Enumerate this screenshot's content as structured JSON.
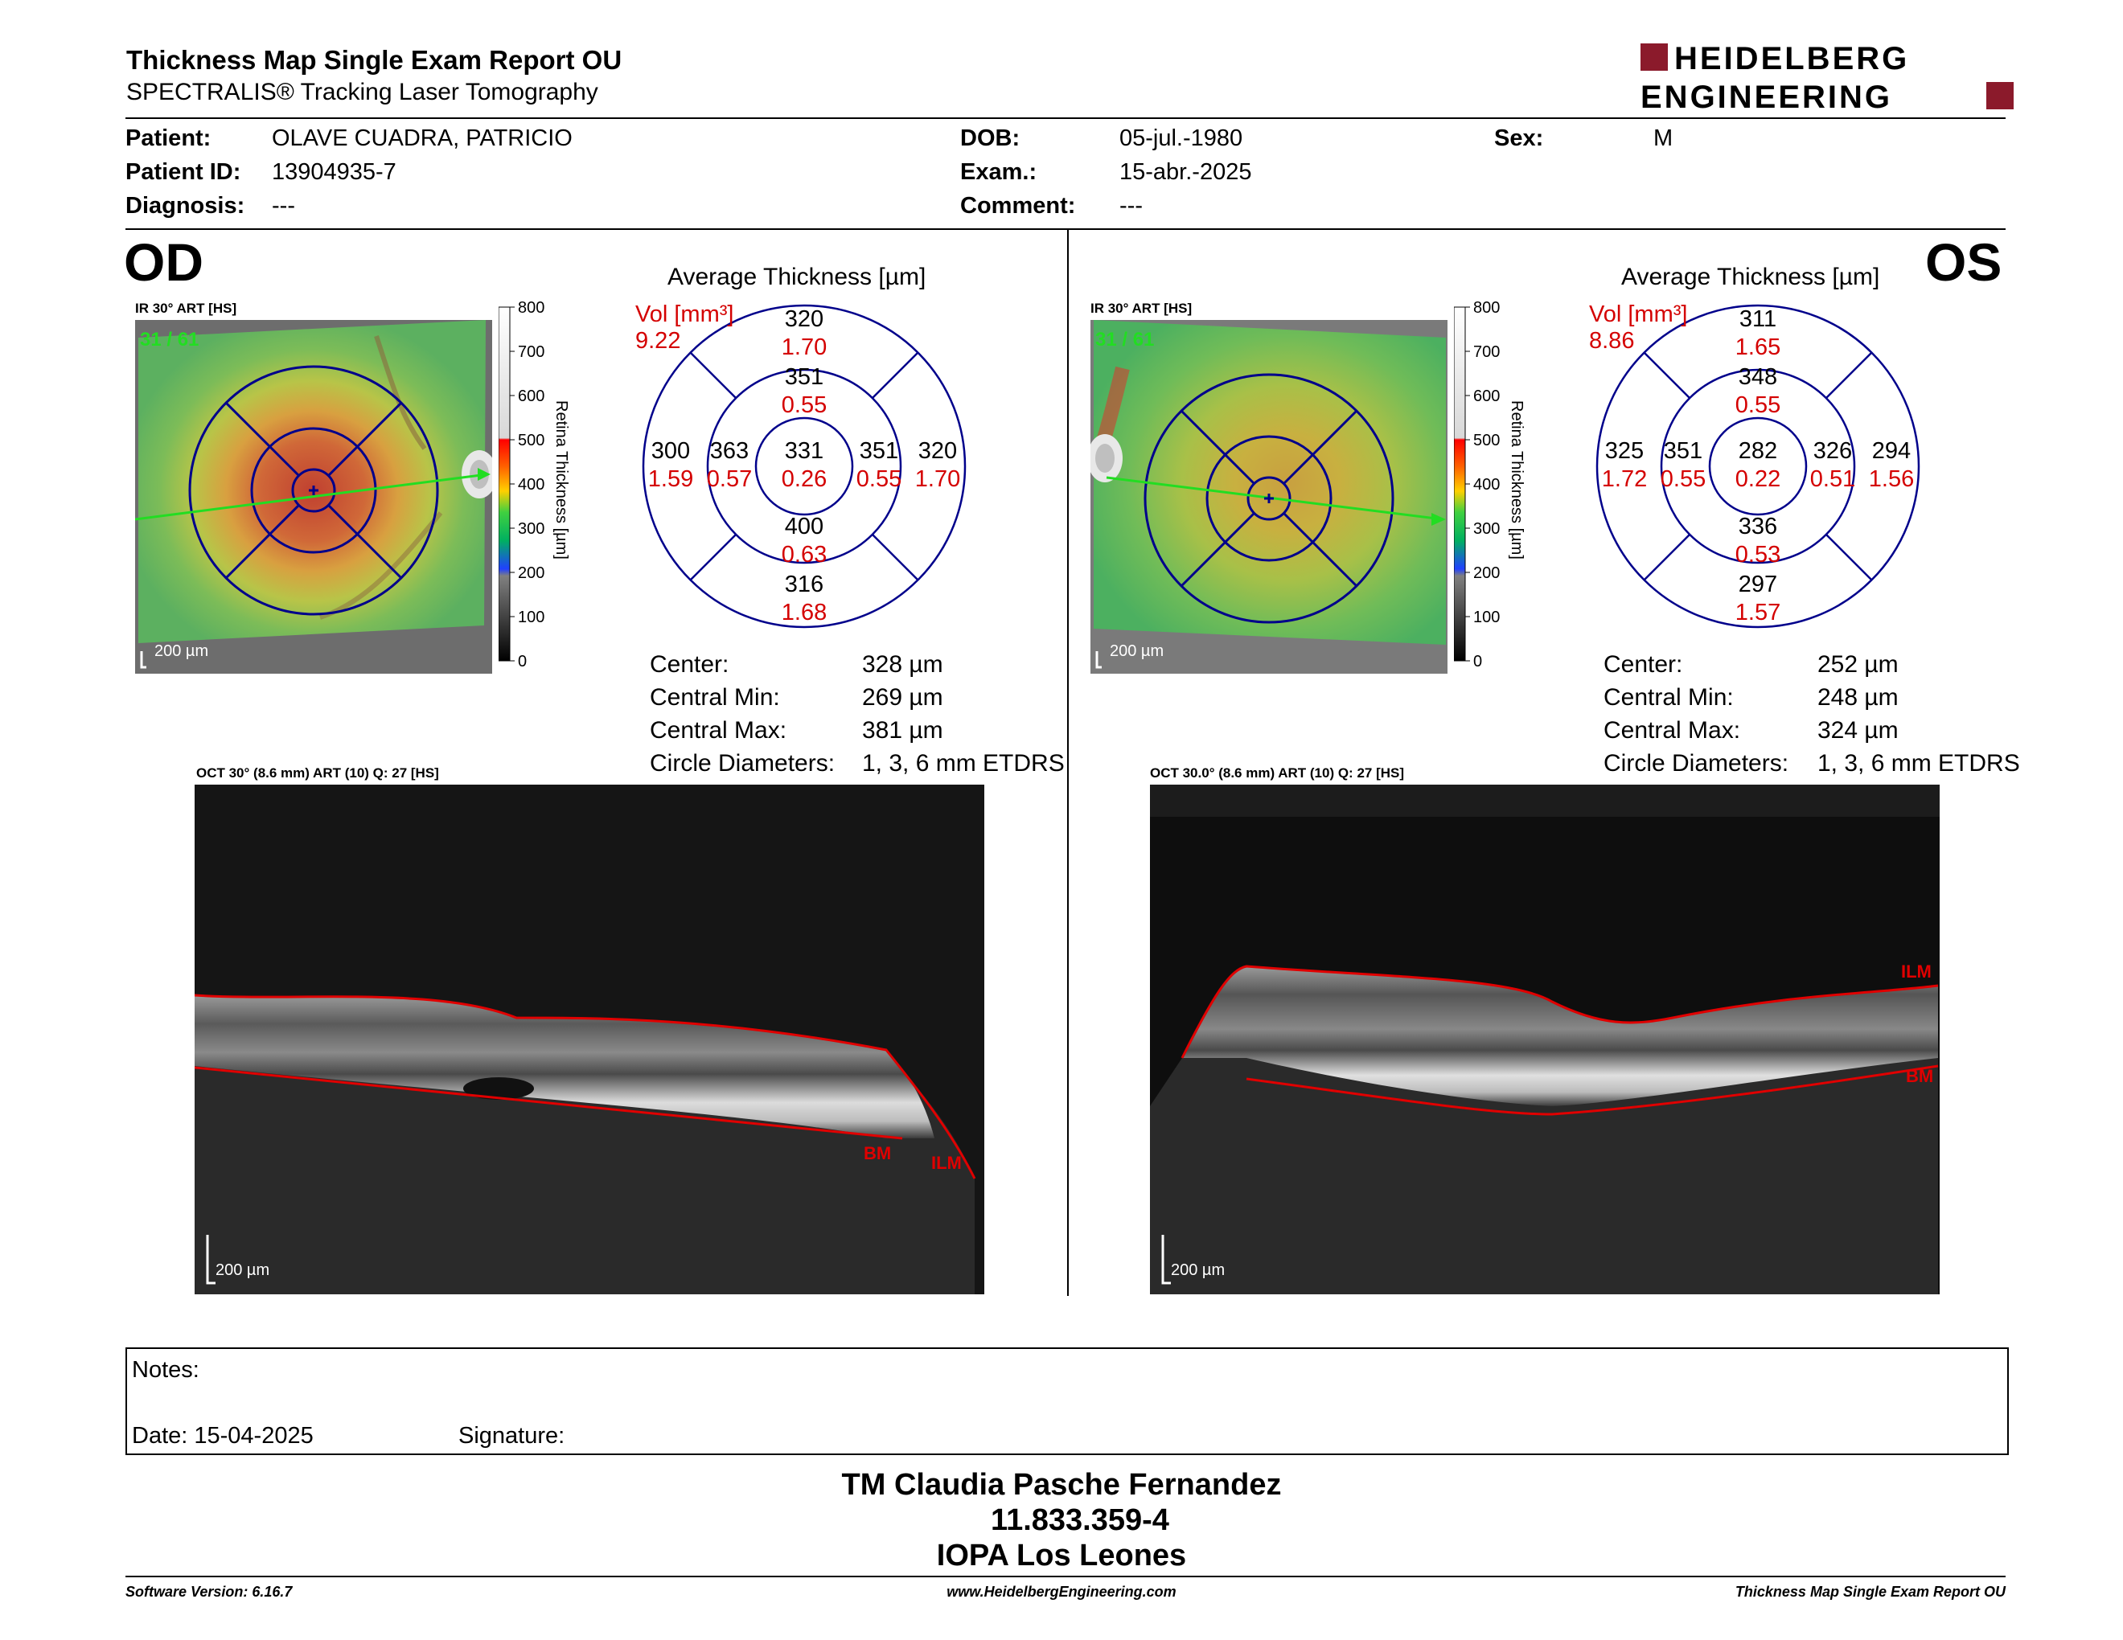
{
  "header": {
    "title": "Thickness Map Single Exam Report OU",
    "subtitle": "SPECTRALIS® Tracking Laser Tomography",
    "logo_line1": "HEIDELBERG",
    "logo_line2": "ENGINEERING"
  },
  "patient": {
    "patient_label": "Patient:",
    "patient_value": "OLAVE CUADRA, PATRICIO",
    "id_label": "Patient ID:",
    "id_value": "13904935-7",
    "diagnosis_label": "Diagnosis:",
    "diagnosis_value": "---",
    "dob_label": "DOB:",
    "dob_value": "05-jul.-1980",
    "exam_label": "Exam.:",
    "exam_value": "15-abr.-2025",
    "comment_label": "Comment:",
    "comment_value": "---",
    "sex_label": "Sex:",
    "sex_value": "M"
  },
  "colors": {
    "grid_blue": "#00008b",
    "value_red": "#d40000",
    "logo_red": "#8b1a2b",
    "trace_red": "#e00000",
    "label_green": "#22dd22"
  },
  "od": {
    "eye": "OD",
    "ir_title": "IR 30° ART [HS]",
    "ir_counter": "31 / 61",
    "scale_label": "200 µm",
    "colorbar_ticks": [
      "800",
      "700",
      "600",
      "500",
      "400",
      "300",
      "200",
      "100",
      "0"
    ],
    "colorbar_title": "Retina Thickness [µm]",
    "avg_title": "Average Thickness [µm]",
    "vol_label": "Vol [mm³]",
    "vol_value": "9.22",
    "etdrs": {
      "center": {
        "t": "331",
        "v": "0.26"
      },
      "inner_sup": {
        "t": "351",
        "v": "0.55"
      },
      "inner_inf": {
        "t": "400",
        "v": "0.63"
      },
      "inner_left": {
        "t": "363",
        "v": "0.57"
      },
      "inner_right": {
        "t": "351",
        "v": "0.55"
      },
      "outer_sup": {
        "t": "320",
        "v": "1.70"
      },
      "outer_inf": {
        "t": "316",
        "v": "1.68"
      },
      "outer_left": {
        "t": "300",
        "v": "1.59"
      },
      "outer_right": {
        "t": "320",
        "v": "1.70"
      }
    },
    "stats": [
      {
        "label": "Center:",
        "value": "328 µm"
      },
      {
        "label": "Central Min:",
        "value": "269 µm"
      },
      {
        "label": "Central Max:",
        "value": "381 µm"
      },
      {
        "label": "Circle Diameters:",
        "value": "1, 3, 6 mm ETDRS"
      }
    ],
    "oct_title": "OCT 30° (8.6 mm) ART (10) Q: 27 [HS]",
    "oct_scale": "200 µm",
    "bm_label": "BM",
    "ilm_label": "ILM"
  },
  "os": {
    "eye": "OS",
    "ir_title": "IR 30° ART [HS]",
    "ir_counter": "31 / 61",
    "scale_label": "200 µm",
    "colorbar_ticks": [
      "800",
      "700",
      "600",
      "500",
      "400",
      "300",
      "200",
      "100",
      "0"
    ],
    "colorbar_title": "Retina Thickness [µm]",
    "avg_title": "Average Thickness [µm]",
    "vol_label": "Vol [mm³]",
    "vol_value": "8.86",
    "etdrs": {
      "center": {
        "t": "282",
        "v": "0.22"
      },
      "inner_sup": {
        "t": "348",
        "v": "0.55"
      },
      "inner_inf": {
        "t": "336",
        "v": "0.53"
      },
      "inner_left": {
        "t": "351",
        "v": "0.55"
      },
      "inner_right": {
        "t": "326",
        "v": "0.51"
      },
      "outer_sup": {
        "t": "311",
        "v": "1.65"
      },
      "outer_inf": {
        "t": "297",
        "v": "1.57"
      },
      "outer_left": {
        "t": "325",
        "v": "1.72"
      },
      "outer_right": {
        "t": "294",
        "v": "1.56"
      }
    },
    "stats": [
      {
        "label": "Center:",
        "value": "252 µm"
      },
      {
        "label": "Central Min:",
        "value": "248 µm"
      },
      {
        "label": "Central Max:",
        "value": "324 µm"
      },
      {
        "label": "Circle Diameters:",
        "value": "1, 3, 6 mm ETDRS"
      }
    ],
    "oct_title": "OCT 30.0° (8.6 mm) ART (10) Q: 27 [HS]",
    "oct_scale": "200 µm",
    "bm_label": "BM",
    "ilm_label": "ILM"
  },
  "notes": {
    "notes_label": "Notes:",
    "date_label": "Date: 15-04-2025",
    "signature_label": "Signature:"
  },
  "signature_block": {
    "line1": "TM Claudia Pasche Fernandez",
    "line2": "11.833.359-4",
    "line3": "IOPA Los Leones"
  },
  "footer": {
    "software": "Software Version: 6.16.7",
    "website": "www.HeidelbergEngineering.com",
    "report": "Thickness Map Single Exam Report OU"
  }
}
